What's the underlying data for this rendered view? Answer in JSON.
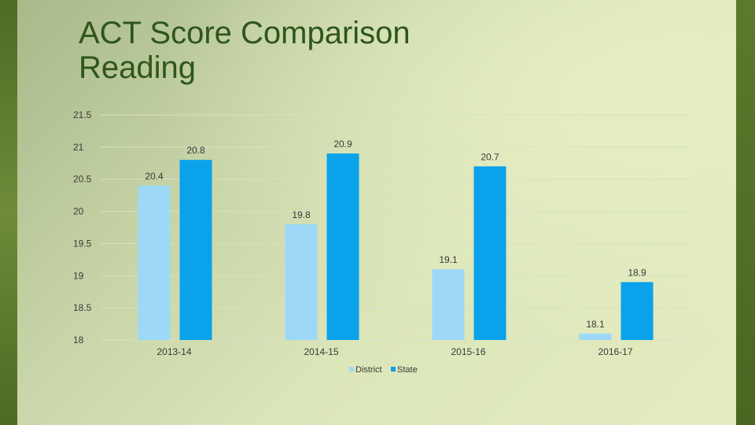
{
  "title": {
    "line1": "ACT Score Comparison",
    "line2": "Reading"
  },
  "colors": {
    "district": "#9dd9f7",
    "state": "#0aa2ea",
    "title": "#2f561a",
    "gridline": "#d9dfc8"
  },
  "chart_data": {
    "type": "bar",
    "categories": [
      "2013-14",
      "2014-15",
      "2015-16",
      "2016-17"
    ],
    "series": [
      {
        "name": "District",
        "values": [
          20.4,
          19.8,
          19.1,
          18.1
        ]
      },
      {
        "name": "State",
        "values": [
          20.8,
          20.9,
          20.7,
          18.9
        ]
      }
    ],
    "ylim": [
      18,
      21.5
    ],
    "yticks": [
      "21.5",
      "21",
      "20.5",
      "20",
      "19.5",
      "19",
      "18.5",
      "18"
    ],
    "grid": true,
    "legend": "bottom"
  }
}
